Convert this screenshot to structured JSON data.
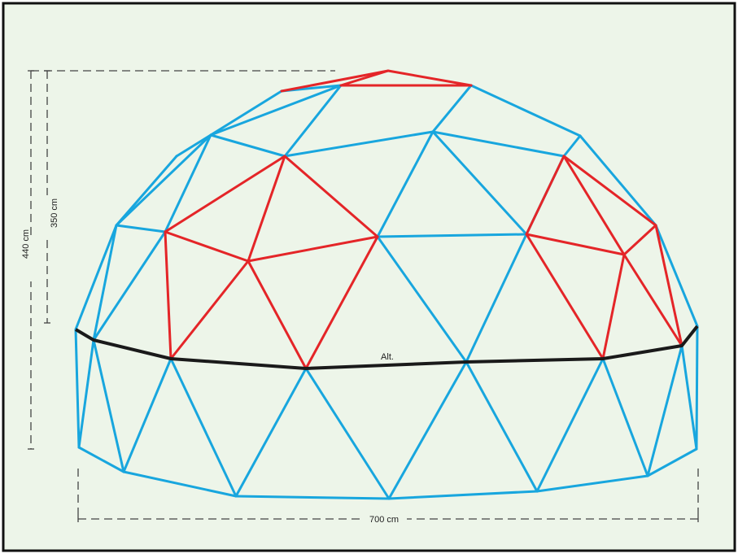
{
  "diagram": {
    "colors": {
      "background": "#edf5e9",
      "frame": "#111111",
      "strut_blue": "#18a6de",
      "strut_red": "#e42528",
      "base_line": "#1a1a1a",
      "dimension": "#444444"
    },
    "labels": {
      "height_total": "440 cm",
      "height_upper": "350 cm",
      "width": "700 cm",
      "alt": "Alt."
    }
  }
}
